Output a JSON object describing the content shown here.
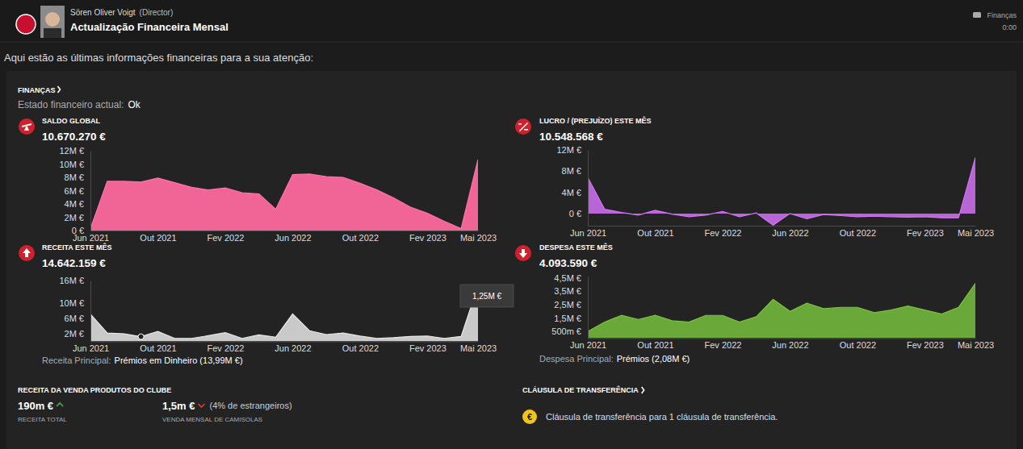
{
  "header": {
    "author": "Sören Oliver Voigt",
    "role": "(Director)",
    "title": "Actualização Financeira Mensal",
    "tag": "Finanças",
    "time": "0:00"
  },
  "intro": "Aqui estão as últimas informações financeiras para a sua atenção:",
  "section": {
    "title": "FINANÇAS",
    "status_label": "Estado financeiro actual:",
    "status": "Ok"
  },
  "chart_data": [
    {
      "type": "area",
      "title": "SALDO GLOBAL",
      "value_text": "10.670.270 €",
      "color": "#f06595",
      "grid": false,
      "categories": [
        "Jun 2021",
        null,
        null,
        null,
        "Out 2021",
        null,
        null,
        null,
        "Fev 2022",
        null,
        null,
        null,
        "Jun 2022",
        null,
        null,
        null,
        "Out 2022",
        null,
        null,
        null,
        "Fev 2023",
        null,
        null,
        "Mai 2023"
      ],
      "values": [
        0.3,
        7.4,
        7.4,
        7.3,
        7.9,
        7.2,
        6.5,
        6.1,
        6.4,
        5.7,
        5.5,
        3.2,
        8.4,
        8.5,
        8.1,
        8.0,
        7.1,
        6.1,
        4.9,
        3.5,
        2.6,
        1.4,
        0.3,
        10.67
      ],
      "ylim": [
        0,
        12
      ],
      "yticks": [
        {
          "value": 0,
          "label": "0 €"
        },
        {
          "value": 2,
          "label": "2M €"
        },
        {
          "value": 4,
          "label": "4M €"
        },
        {
          "value": 6,
          "label": "6M €"
        },
        {
          "value": 8,
          "label": "8M €"
        },
        {
          "value": 10,
          "label": "10M €"
        },
        {
          "value": 12,
          "label": "12M €"
        }
      ]
    },
    {
      "type": "area",
      "title": "LUCRO / (PREJUÍZO) ESTE MÊS",
      "value_text": "10.548.568 €",
      "color": "#b865d6",
      "grid": false,
      "categories": [
        "Jun 2021",
        null,
        null,
        null,
        "Out 2021",
        null,
        null,
        null,
        "Fev 2022",
        null,
        null,
        null,
        "Jun 2022",
        null,
        null,
        null,
        "Out 2022",
        null,
        null,
        null,
        "Fev 2023",
        null,
        null,
        "Mai 2023"
      ],
      "values": [
        6.8,
        0.8,
        0.2,
        -0.3,
        0.6,
        -0.1,
        -0.6,
        -0.3,
        0.4,
        -0.6,
        0.1,
        -2.2,
        0.0,
        -1.0,
        -0.2,
        -0.4,
        -0.6,
        -0.5,
        -0.6,
        -0.7,
        -0.6,
        -0.8,
        -0.8,
        10.55
      ],
      "ylim": [
        -2.3,
        12
      ],
      "yticks": [
        {
          "value": 0,
          "label": "0 €"
        },
        {
          "value": 4,
          "label": "4M €"
        },
        {
          "value": 8,
          "label": "8M €"
        },
        {
          "value": 12,
          "label": "12M €"
        }
      ]
    },
    {
      "type": "area",
      "title": "RECEITA ESTE MÊS",
      "value_text": "14.642.159 €",
      "color": "#c9c9c9",
      "grid": false,
      "categories": [
        "Jun 2021",
        null,
        null,
        null,
        "Out 2021",
        null,
        null,
        null,
        "Fev 2022",
        null,
        null,
        null,
        "Jun 2022",
        null,
        null,
        null,
        "Out 2022",
        null,
        null,
        null,
        "Fev 2023",
        null,
        null,
        "Mai 2023"
      ],
      "values": [
        7.2,
        2.2,
        2.0,
        1.25,
        2.6,
        0.8,
        0.8,
        1.5,
        2.3,
        0.8,
        1.7,
        1.1,
        7.2,
        2.8,
        1.8,
        2.2,
        1.4,
        0.8,
        1.0,
        1.3,
        1.4,
        0.8,
        1.3,
        14.64
      ],
      "ylim": [
        0,
        16
      ],
      "yticks": [
        {
          "value": 2,
          "label": "2M €"
        },
        {
          "value": 6,
          "label": "6M €"
        },
        {
          "value": 10,
          "label": "10M €"
        },
        {
          "value": 16,
          "label": "16M €"
        }
      ],
      "annotations": [
        {
          "text": "1,25M €",
          "value": 1.25
        }
      ],
      "footer_label": "Receita Principal:",
      "footer_value": "Prémios em Dinheiro (13,99M €)"
    },
    {
      "type": "area",
      "title": "DESPESA ESTE MÊS",
      "value_text": "4.093.590 €",
      "color": "#6aa83a",
      "grid": false,
      "categories": [
        "Jun 2021",
        null,
        null,
        null,
        "Out 2021",
        null,
        null,
        null,
        "Fev 2022",
        null,
        null,
        null,
        "Jun 2022",
        null,
        null,
        null,
        "Out 2022",
        null,
        null,
        null,
        "Fev 2023",
        null,
        null,
        "Mai 2023"
      ],
      "values": [
        0.5,
        1.2,
        1.7,
        1.4,
        1.7,
        1.3,
        1.2,
        1.7,
        1.7,
        1.2,
        1.6,
        2.9,
        2.0,
        2.6,
        2.2,
        2.3,
        2.3,
        1.9,
        2.1,
        2.4,
        2.1,
        1.8,
        2.3,
        4.09
      ],
      "ylim": [
        0,
        4.6
      ],
      "yticks": [
        {
          "value": 0.5,
          "label": "500m €"
        },
        {
          "value": 1.5,
          "label": "1,5M €"
        },
        {
          "value": 2.5,
          "label": "2,5M €"
        },
        {
          "value": 3.5,
          "label": "3,5M €"
        },
        {
          "value": 4.5,
          "label": "4,5M €"
        }
      ],
      "footer_label": "Despesa Principal:",
      "footer_value": "Prémios (2,08M €)"
    }
  ],
  "merch": {
    "title": "RECEITA DA VENDA PRODUTOS DO CLUBE",
    "total": "190m €",
    "total_label": "RECEITA TOTAL",
    "monthly": "1,5m €",
    "monthly_note": "(4% de estrangeiros)",
    "monthly_label": "VENDA MENSAL DE CAMISOLAS"
  },
  "clause": {
    "title": "CLÁUSULA DE TRANSFERÊNCIA",
    "icon": "€",
    "text": "Cláusula de transferência para 1 cláusula de transferência."
  }
}
